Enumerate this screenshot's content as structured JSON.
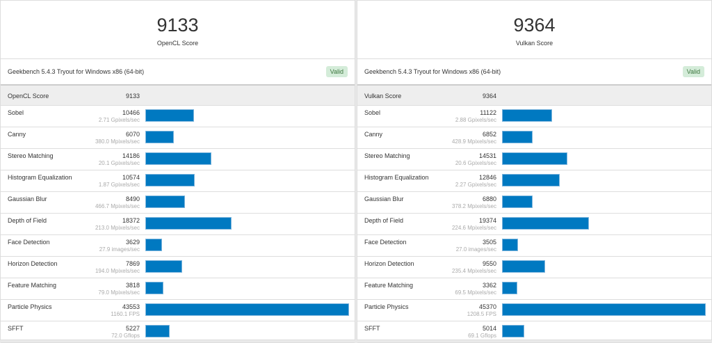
{
  "panels": [
    {
      "score": "9133",
      "score_label": "OpenCL Score",
      "version": "Geekbench 5.4.3 Tryout for Windows x86 (64-bit)",
      "badge": "Valid",
      "max": 43553,
      "rows": [
        [
          "Sobel",
          "10466",
          "2.71 Gpixels/sec"
        ],
        [
          "Canny",
          "6070",
          "380.0 Mpixels/sec"
        ],
        [
          "Stereo Matching",
          "14186",
          "20.1 Gpixels/sec"
        ],
        [
          "Histogram Equalization",
          "10574",
          "1.87 Gpixels/sec"
        ],
        [
          "Gaussian Blur",
          "8490",
          "466.7 Mpixels/sec"
        ],
        [
          "Depth of Field",
          "18372",
          "213.0 Mpixels/sec"
        ],
        [
          "Face Detection",
          "3629",
          "27.9 images/sec"
        ],
        [
          "Horizon Detection",
          "7869",
          "194.0 Mpixels/sec"
        ],
        [
          "Feature Matching",
          "3818",
          "79.0 Mpixels/sec"
        ],
        [
          "Particle Physics",
          "43553",
          "1160.1 FPS"
        ],
        [
          "SFFT",
          "5227",
          "72.0 Gflops"
        ]
      ]
    },
    {
      "score": "9364",
      "score_label": "Vulkan Score",
      "version": "Geekbench 5.4.3 Tryout for Windows x86 (64-bit)",
      "badge": "Valid",
      "max": 45370,
      "rows": [
        [
          "Sobel",
          "11122",
          "2.88 Gpixels/sec"
        ],
        [
          "Canny",
          "6852",
          "428.9 Mpixels/sec"
        ],
        [
          "Stereo Matching",
          "14531",
          "20.6 Gpixels/sec"
        ],
        [
          "Histogram Equalization",
          "12846",
          "2.27 Gpixels/sec"
        ],
        [
          "Gaussian Blur",
          "6880",
          "378.2 Mpixels/sec"
        ],
        [
          "Depth of Field",
          "19374",
          "224.6 Mpixels/sec"
        ],
        [
          "Face Detection",
          "3505",
          "27.0 images/sec"
        ],
        [
          "Horizon Detection",
          "9550",
          "235.4 Mpixels/sec"
        ],
        [
          "Feature Matching",
          "3362",
          "69.5 Mpixels/sec"
        ],
        [
          "Particle Physics",
          "45370",
          "1208.5 FPS"
        ],
        [
          "SFFT",
          "5014",
          "69.1 Gflops"
        ]
      ]
    }
  ]
}
